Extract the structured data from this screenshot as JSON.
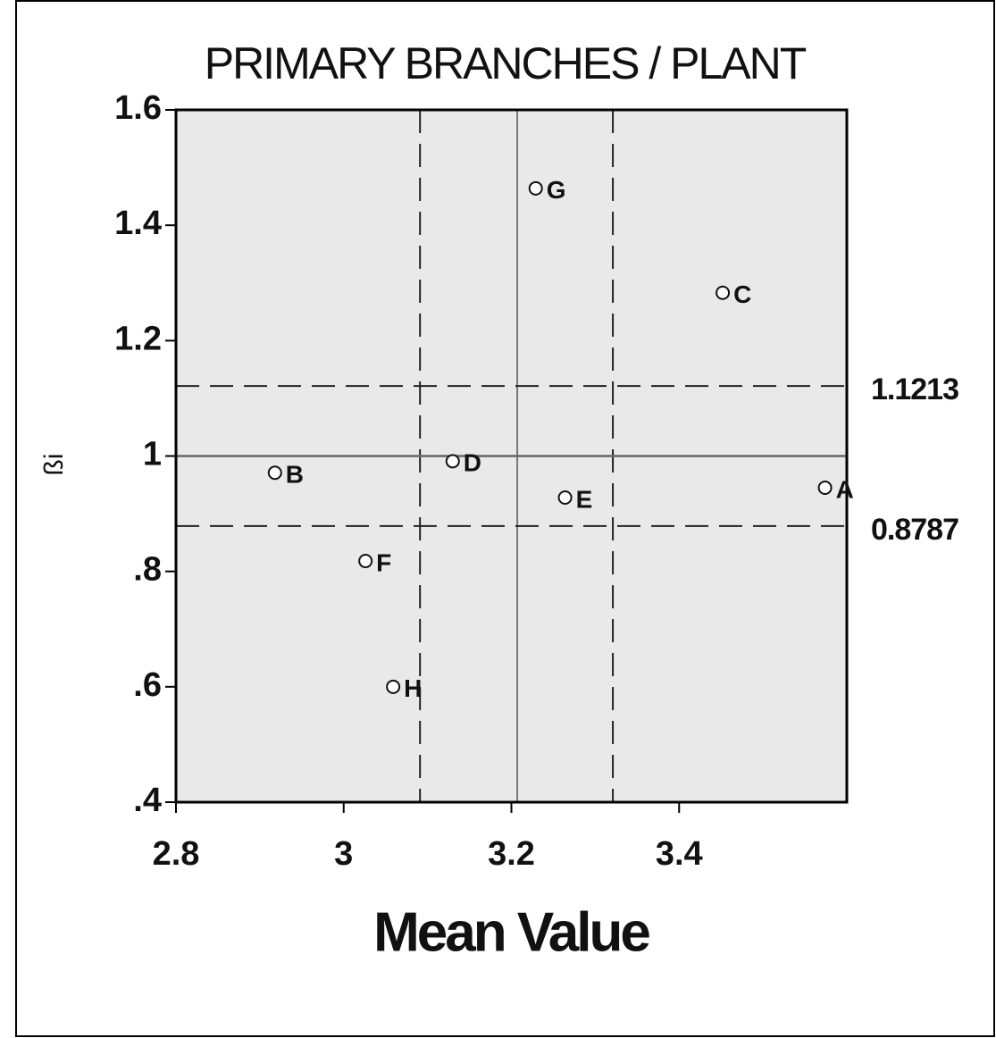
{
  "chart_data": {
    "type": "scatter",
    "title": "PRIMARY BRANCHES  / PLANT",
    "xlabel": "Mean Value",
    "ylabel": "ßi",
    "labels": [
      "G",
      "C",
      "D",
      "B",
      "E",
      "A",
      "F",
      "H"
    ],
    "x": [
      3.229,
      3.452,
      3.13,
      2.918,
      3.264,
      3.574,
      3.026,
      3.059
    ],
    "values": [
      1.464,
      1.283,
      0.991,
      0.971,
      0.928,
      0.945,
      0.818,
      0.6
    ],
    "xlim": [
      2.8,
      3.6
    ],
    "ylim": [
      0.4,
      1.6
    ],
    "xticks": [
      2.8,
      3,
      3.2,
      3.4
    ],
    "yticks": [
      {
        "value": 0.4,
        "label": ".4"
      },
      {
        "value": 0.6,
        "label": ".6"
      },
      {
        "value": 0.8,
        "label": ".8"
      },
      1,
      1.2,
      1.4,
      1.6
    ],
    "hlines_dashed": [
      1.1213,
      0.8787
    ],
    "hline_solid": 1,
    "vlines_dashed": [
      3.091,
      3.321
    ],
    "vline_solid": 3.207
  }
}
